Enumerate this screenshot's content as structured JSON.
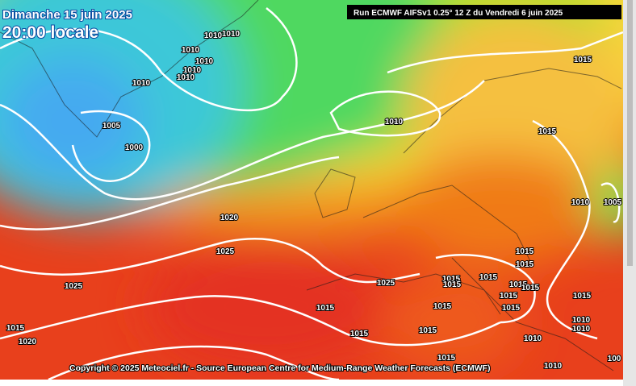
{
  "header": {
    "date": "Dimanche 15 juin 2025",
    "time": "20:00 locale",
    "run": "Run ECMWF AIFSv1 0.25° 12 Z du Vendredi 6 juin 2025"
  },
  "footer": "Copyright © 2025 Meteociel.fr - Source European Centre for Medium-Range Weather Forecasts (ECMWF)",
  "isobar_labels": [
    "1010",
    "1010",
    "1010",
    "1010",
    "1010",
    "1010",
    "1010",
    "1005",
    "1000",
    "1010",
    "1015",
    "1015",
    "1020",
    "1025",
    "1025",
    "1015",
    "1020",
    "1010",
    "1005",
    "1025",
    "1015",
    "1015",
    "1015",
    "1015",
    "1015",
    "1015",
    "1015",
    "1015",
    "1015",
    "1015",
    "1015",
    "1015",
    "1015",
    "1015",
    "1015",
    "1010",
    "1010",
    "1010",
    "1010",
    "100"
  ]
}
